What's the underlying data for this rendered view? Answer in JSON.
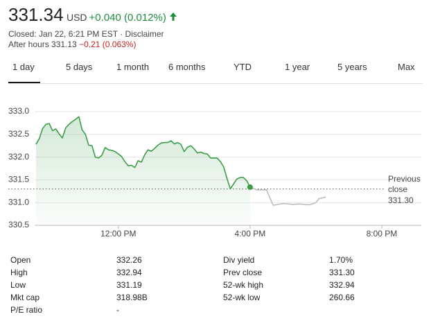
{
  "header": {
    "price": "331.34",
    "currency": "USD",
    "change": "+0.040 (0.012%)",
    "status": "Closed: Jan 22, 6:21 PM EST · Disclaimer",
    "after_hours_label": "After hours 331.13",
    "after_hours_change": "−0.21 (0.063%)"
  },
  "tabs": [
    "1 day",
    "5 days",
    "1 month",
    "6 months",
    "YTD",
    "1 year",
    "5 years",
    "Max"
  ],
  "chart_data": {
    "type": "line",
    "grid": true,
    "xlim": [
      9.5,
      21.2
    ],
    "xticks": [
      {
        "value": 12,
        "label": "12:00 PM"
      },
      {
        "value": 16,
        "label": "4:00 PM"
      },
      {
        "value": 20,
        "label": "8:00 PM"
      }
    ],
    "ylim": [
      330.5,
      333.0
    ],
    "yticks": [
      {
        "value": 333,
        "label": "333.0"
      },
      332.5,
      {
        "value": 332,
        "label": "332.0"
      },
      331.5,
      {
        "value": 331,
        "label": "331.0"
      },
      330.5
    ],
    "reference_line": {
      "label": "Previous close",
      "value": {
        "value": 331.3,
        "label": "331.30"
      }
    },
    "series": [
      {
        "color": "#3c9c4c",
        "fill": true,
        "x": [
          9.5,
          9.6,
          9.7,
          9.8,
          9.9,
          10.0,
          10.1,
          10.2,
          10.3,
          10.4,
          10.5,
          10.6,
          10.7,
          10.8,
          10.9,
          11.0,
          11.1,
          11.2,
          11.3,
          11.4,
          11.5,
          11.6,
          11.7,
          11.8,
          11.9,
          12.0,
          12.1,
          12.2,
          12.3,
          12.4,
          12.5,
          12.6,
          12.7,
          12.8,
          12.9,
          13.0,
          13.1,
          13.2,
          13.3,
          13.4,
          13.5,
          13.6,
          13.7,
          13.8,
          13.9,
          14.0,
          14.1,
          14.2,
          14.3,
          14.4,
          14.5,
          14.6,
          14.7,
          14.8,
          14.9,
          15.0,
          15.1,
          15.2,
          15.3,
          15.4,
          15.5,
          15.6,
          15.7,
          15.8,
          15.9,
          16.0
        ],
        "values": [
          332.28,
          332.41,
          332.63,
          332.72,
          332.74,
          332.58,
          332.62,
          332.51,
          332.42,
          332.64,
          332.72,
          332.78,
          332.83,
          332.89,
          332.6,
          332.5,
          332.26,
          332.25,
          332.0,
          331.98,
          332.04,
          332.21,
          332.16,
          332.15,
          332.12,
          332.07,
          332.01,
          331.9,
          331.81,
          331.82,
          331.77,
          331.92,
          331.89,
          332.05,
          332.16,
          332.13,
          332.19,
          332.26,
          332.31,
          332.32,
          332.32,
          332.36,
          332.29,
          332.32,
          332.28,
          332.12,
          332.22,
          332.25,
          332.18,
          332.09,
          332.11,
          332.08,
          332.07,
          331.98,
          331.98,
          331.98,
          331.9,
          331.78,
          331.53,
          331.3,
          331.41,
          331.52,
          331.55,
          331.55,
          331.48,
          331.34
        ]
      },
      {
        "color": "#bdbdbd",
        "fill": false,
        "x": [
          16.0,
          16.2,
          16.5,
          16.7,
          17.0,
          17.3,
          17.5,
          17.8,
          18.0,
          18.1,
          18.3
        ],
        "values": [
          331.34,
          331.28,
          331.28,
          330.94,
          330.98,
          330.96,
          330.97,
          330.95,
          331.0,
          331.09,
          331.12
        ]
      }
    ]
  },
  "stats": {
    "rows": [
      [
        "Open",
        "332.26",
        "Div yield",
        "1.70%"
      ],
      [
        "High",
        "332.94",
        "Prev close",
        "331.30"
      ],
      [
        "Low",
        "331.19",
        "52-wk high",
        "332.94"
      ],
      [
        "Mkt cap",
        "318.98B",
        "52-wk low",
        "260.66"
      ],
      [
        "P/E ratio",
        "-"
      ]
    ]
  }
}
